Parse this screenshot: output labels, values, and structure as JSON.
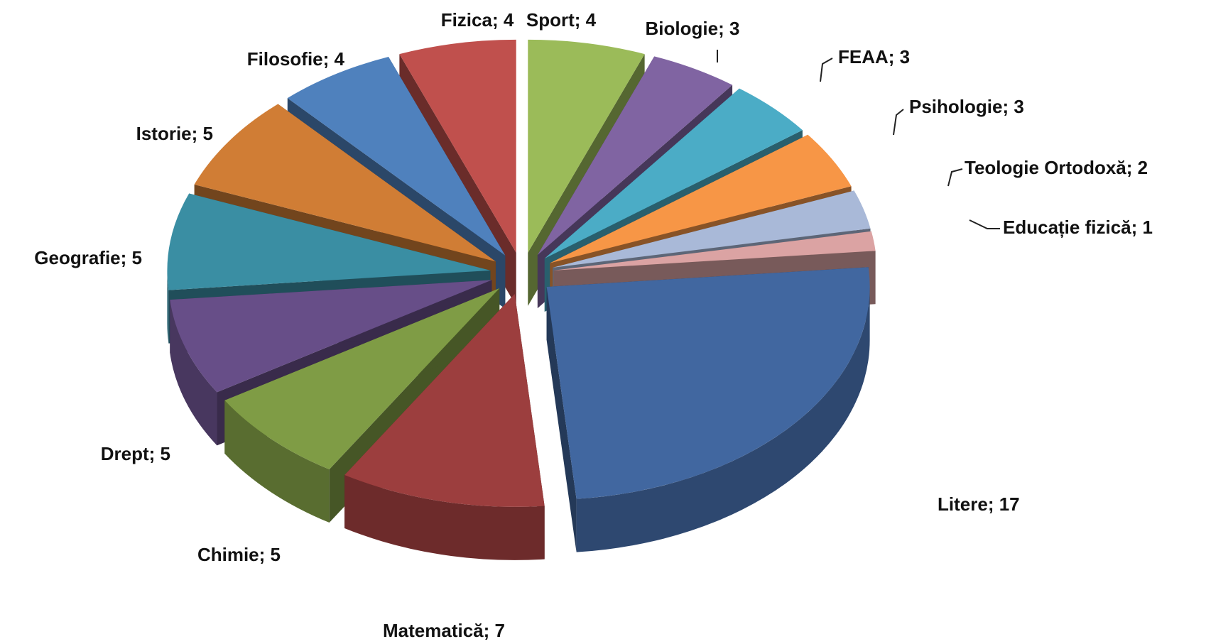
{
  "chart_data": {
    "type": "pie3d",
    "categories": [
      "Sport",
      "Biologie",
      "FEAA",
      "Psihologie",
      "Teologie Ortodoxă",
      "Educație fizică",
      "Litere",
      "Matematică",
      "Chimie",
      "Drept",
      "Geografie",
      "Istorie",
      "Filosofie",
      "Fizica"
    ],
    "values": [
      4,
      3,
      3,
      3,
      2,
      1,
      17,
      7,
      5,
      5,
      5,
      5,
      4,
      4
    ],
    "colors": [
      "#9bbb59",
      "#8064a2",
      "#4bacc6",
      "#f79646",
      "#a9b9d8",
      "#dba3a3",
      "#4167a0",
      "#9c3e3e",
      "#7f9c45",
      "#674e88",
      "#3a8ea3",
      "#d07d35",
      "#4f81bd",
      "#c0504d"
    ],
    "label_separator": "; "
  }
}
